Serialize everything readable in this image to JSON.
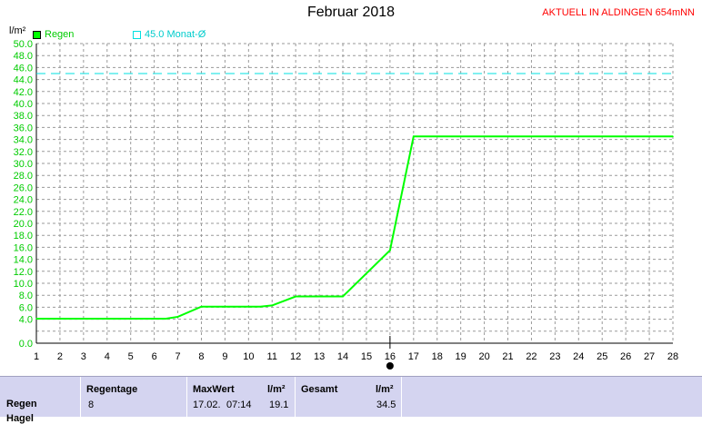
{
  "title": "Februar 2018",
  "status": "AKTUELL IN ALDINGEN 654mNN",
  "unit": "l/m²",
  "legend": {
    "rain_label": "Regen",
    "rain_color": "#00ff00",
    "ref_label": "45.0 Monat-Ø",
    "ref_color": "#00e0e0"
  },
  "chart_data": {
    "type": "line",
    "title": "Februar 2018",
    "ylabel": "l/m²",
    "xlabel": "",
    "xlim": [
      1,
      28
    ],
    "ylim": [
      0,
      50
    ],
    "y_ticks": [
      0,
      4,
      6,
      8,
      10,
      12,
      14,
      16,
      18,
      20,
      22,
      24,
      26,
      28,
      30,
      32,
      34,
      36,
      38,
      40,
      42,
      44,
      46,
      48,
      50
    ],
    "x_ticks": [
      1,
      2,
      3,
      4,
      5,
      6,
      7,
      8,
      9,
      10,
      11,
      12,
      13,
      14,
      15,
      16,
      17,
      18,
      19,
      20,
      21,
      22,
      23,
      24,
      25,
      26,
      27,
      28
    ],
    "grid": true,
    "legend_position": "top-left",
    "series": [
      {
        "name": "Regen",
        "color": "#00ff00",
        "x": [
          1,
          6.5,
          7,
          8,
          10.5,
          11,
          12,
          14,
          16,
          17,
          28
        ],
        "y": [
          4.1,
          4.1,
          4.4,
          6.1,
          6.1,
          6.3,
          7.8,
          7.8,
          15.5,
          34.5,
          34.5
        ]
      }
    ],
    "reference_line": {
      "label": "45.0 Monat-Ø",
      "y": 45.0,
      "color": "#00e0e0"
    },
    "current_day_marker": 16
  },
  "stats": {
    "row_label": "Regen",
    "row_label2": "Hagel",
    "rain_days_header": "Regentage",
    "rain_days_value": "8",
    "max_header": "MaxWert",
    "max_unit": "l/m²",
    "max_date": "17.02.",
    "max_time": "07:14",
    "max_value": "19.1",
    "total_header": "Gesamt",
    "total_unit": "l/m²",
    "total_value": "34.5"
  }
}
